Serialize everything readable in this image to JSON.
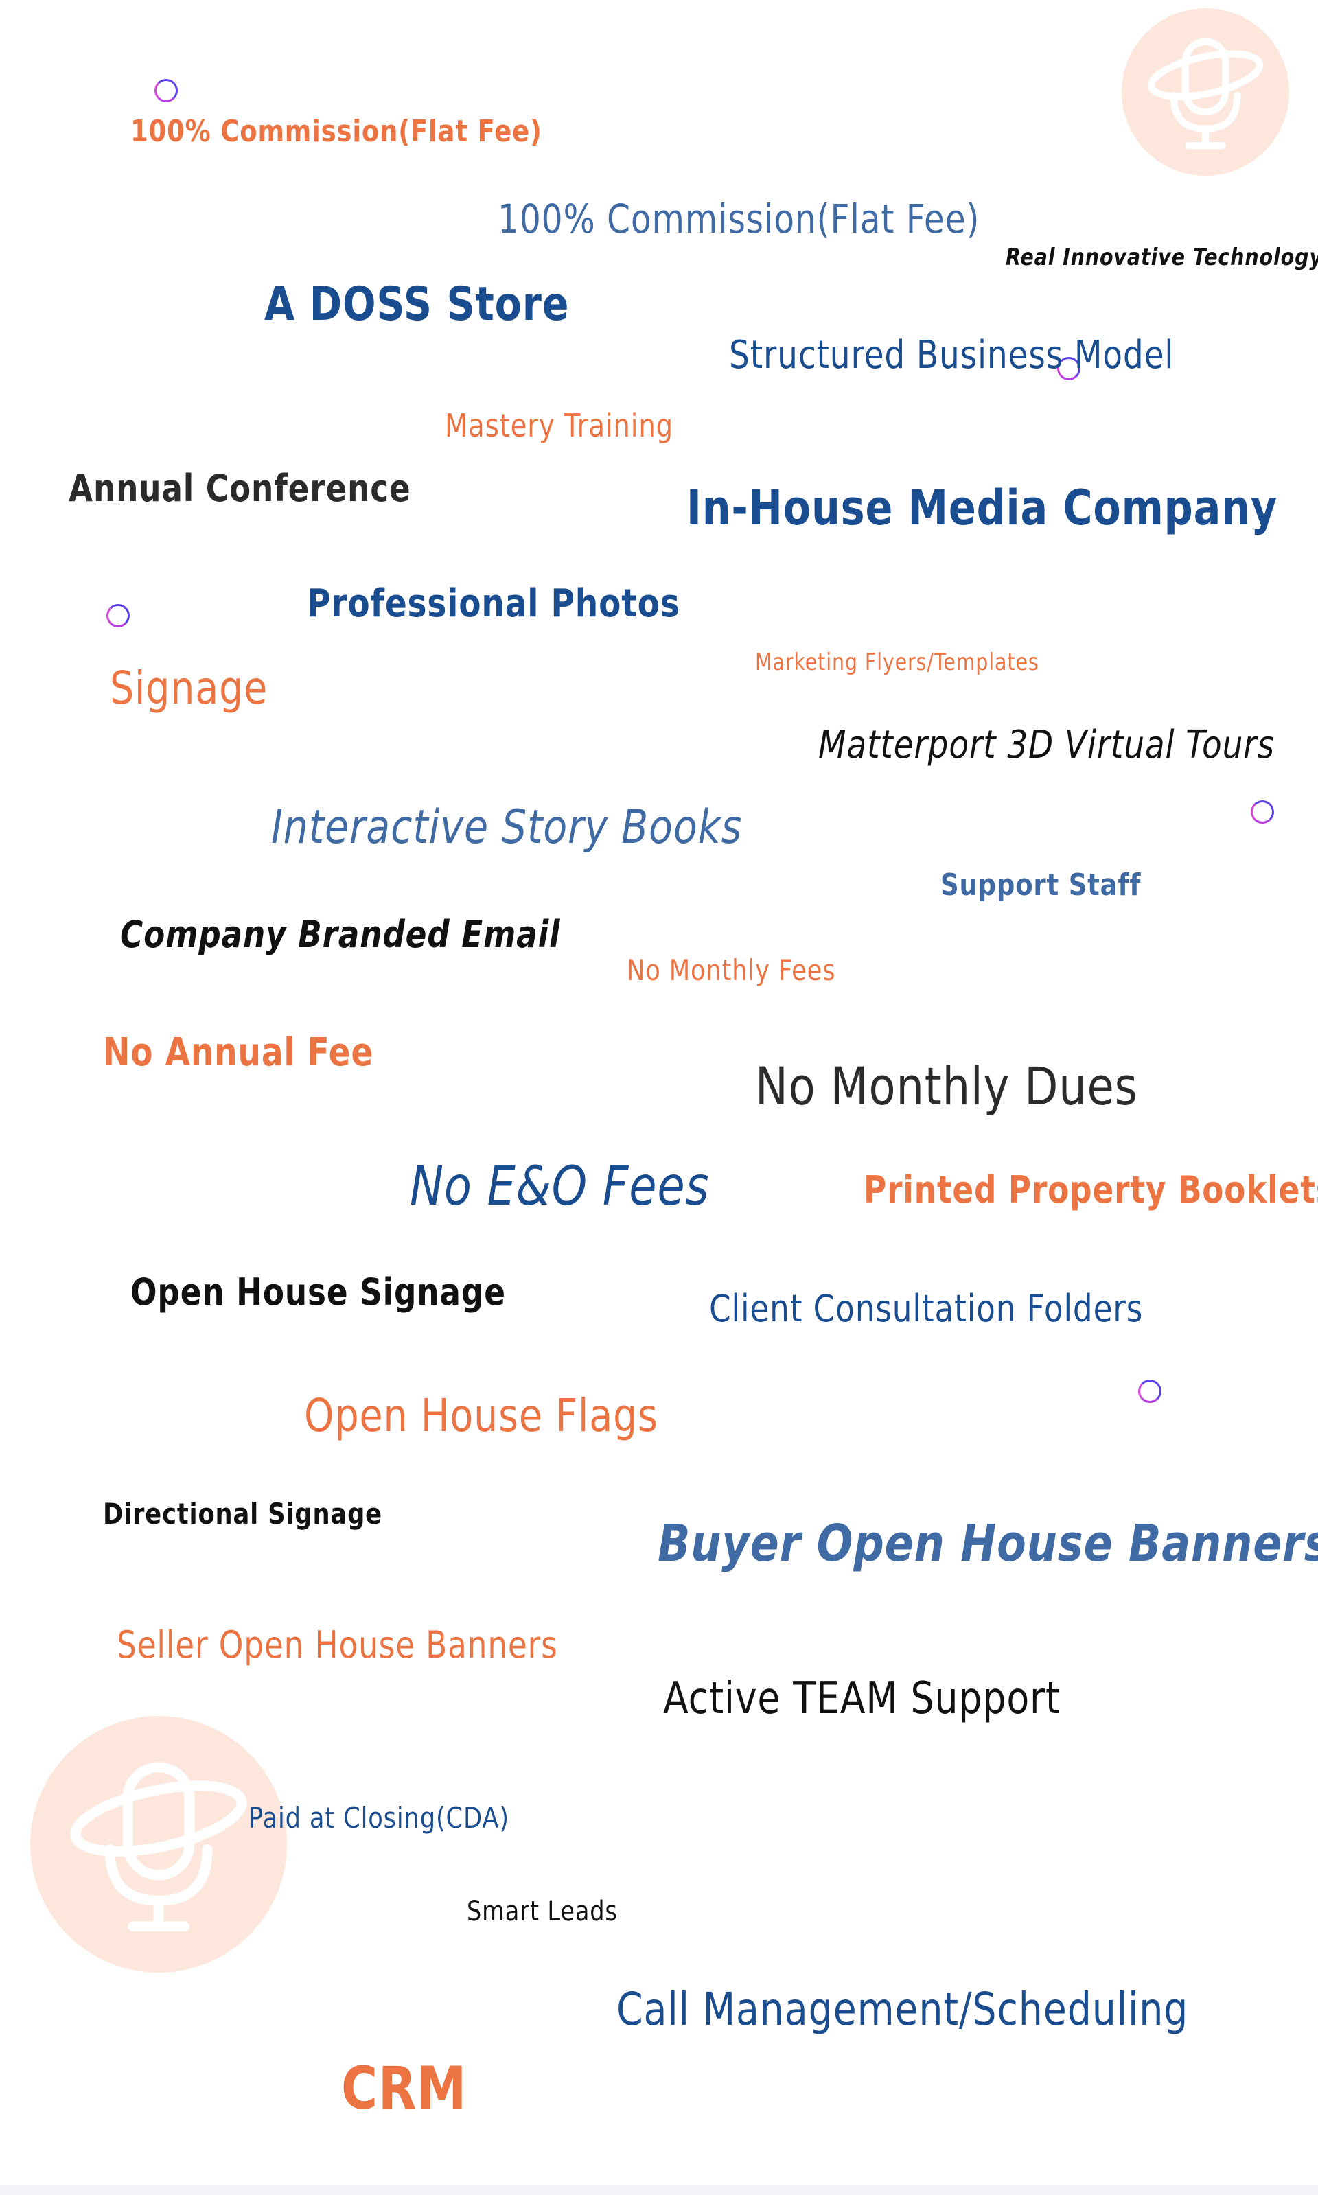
{
  "terms": [
    "100% Commission(Flat Fee)",
    "100% Commission(Flat Fee)",
    "Real Innovative Technology",
    "A DOSS Store",
    "Structured Business Model",
    "Mastery Training",
    "Annual Conference",
    "In-House Media Company",
    "Professional Photos",
    "Marketing Flyers/Templates",
    "Signage",
    "Matterport 3D Virtual Tours",
    "Interactive Story Books",
    "Support Staff",
    "Company Branded Email",
    "No Monthly Fees",
    "No Annual Fee",
    "No Monthly Dues",
    "No E&O Fees",
    "Printed Property Booklets",
    "Open House Signage",
    "Client Consultation Folders",
    "Open House Flags",
    "Directional Signage",
    "Buyer Open House Banners",
    "Seller Open House Banners",
    "Active TEAM Support",
    "Paid at Closing(CDA)",
    "Smart Leads",
    "Call Management/Scheduling",
    "CRM"
  ],
  "logo": {
    "icon": "microphone-orbit-icon",
    "circle_color": "#fde7dc",
    "stroke_color": "#ffffff"
  },
  "decorations": {
    "icon": "ring-dot-icon",
    "colors": [
      "#5b3ee6",
      "#d448d8"
    ]
  },
  "colors": {
    "orange": "#ec7442",
    "navy": "#1a4d8f",
    "steel": "#3f6aa3",
    "black": "#111111",
    "dark": "#2b2b2b"
  }
}
